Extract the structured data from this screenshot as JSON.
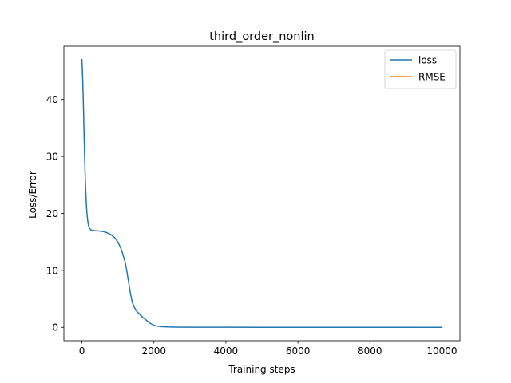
{
  "chart_data": {
    "type": "line",
    "title": "third_order_nonlin",
    "xlabel": "Training steps",
    "ylabel": "Loss/Error",
    "xlim": [
      -500,
      10500
    ],
    "ylim": [
      -2.35,
      49.35
    ],
    "xticks": [
      0,
      2000,
      4000,
      6000,
      8000,
      10000
    ],
    "xtick_labels": [
      "0",
      "2000",
      "4000",
      "6000",
      "8000",
      "10000"
    ],
    "yticks": [
      0,
      10,
      20,
      30,
      40
    ],
    "ytick_labels": [
      "0",
      "10",
      "20",
      "30",
      "40"
    ],
    "grid": false,
    "legend_position": "top-right",
    "series": [
      {
        "name": "loss",
        "color": "#1f77b4",
        "x": [
          0,
          20,
          40,
          60,
          80,
          100,
          120,
          140,
          160,
          180,
          200,
          250,
          300,
          400,
          500,
          600,
          700,
          800,
          900,
          1000,
          1100,
          1200,
          1250,
          1300,
          1350,
          1400,
          1450,
          1500,
          1600,
          1700,
          1800,
          1900,
          2000,
          2100,
          2200,
          2400,
          2600,
          3000,
          3500,
          4000,
          5000,
          6000,
          7000,
          8000,
          9000,
          10000
        ],
        "y": [
          47.0,
          44.0,
          39.5,
          34.0,
          29.0,
          25.0,
          22.0,
          20.0,
          18.8,
          18.0,
          17.5,
          17.1,
          17.0,
          16.95,
          16.9,
          16.8,
          16.6,
          16.3,
          15.8,
          15.0,
          13.6,
          11.5,
          9.8,
          7.8,
          5.9,
          4.4,
          3.6,
          3.0,
          2.3,
          1.7,
          1.2,
          0.7,
          0.35,
          0.2,
          0.12,
          0.06,
          0.04,
          0.02,
          0.01,
          0.01,
          0.0,
          0.0,
          0.0,
          0.0,
          0.0,
          0.0
        ]
      },
      {
        "name": "RMSE",
        "color": "#ff7f0e",
        "x": [],
        "y": []
      }
    ]
  }
}
